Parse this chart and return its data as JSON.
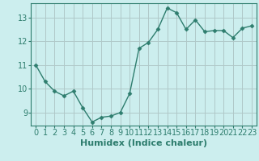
{
  "x": [
    0,
    1,
    2,
    3,
    4,
    5,
    6,
    7,
    8,
    9,
    10,
    11,
    12,
    13,
    14,
    15,
    16,
    17,
    18,
    19,
    20,
    21,
    22,
    23
  ],
  "y": [
    11.0,
    10.3,
    9.9,
    9.7,
    9.9,
    9.2,
    8.6,
    8.8,
    8.85,
    9.0,
    9.8,
    11.7,
    11.95,
    12.5,
    13.4,
    13.2,
    12.5,
    12.9,
    12.4,
    12.45,
    12.45,
    12.15,
    12.55,
    12.65
  ],
  "xlabel": "Humidex (Indice chaleur)",
  "xlim": [
    -0.5,
    23.5
  ],
  "ylim": [
    8.45,
    13.6
  ],
  "yticks": [
    9,
    10,
    11,
    12,
    13
  ],
  "xticks": [
    0,
    1,
    2,
    3,
    4,
    5,
    6,
    7,
    8,
    9,
    10,
    11,
    12,
    13,
    14,
    15,
    16,
    17,
    18,
    19,
    20,
    21,
    22,
    23
  ],
  "line_color": "#2e7d6e",
  "marker": "D",
  "marker_size": 2.5,
  "line_width": 1.0,
  "bg_color": "#cceeee",
  "grid_color": "#b0c8c8",
  "xlabel_fontsize": 8,
  "tick_fontsize": 7,
  "label_color": "#2e7d6e"
}
